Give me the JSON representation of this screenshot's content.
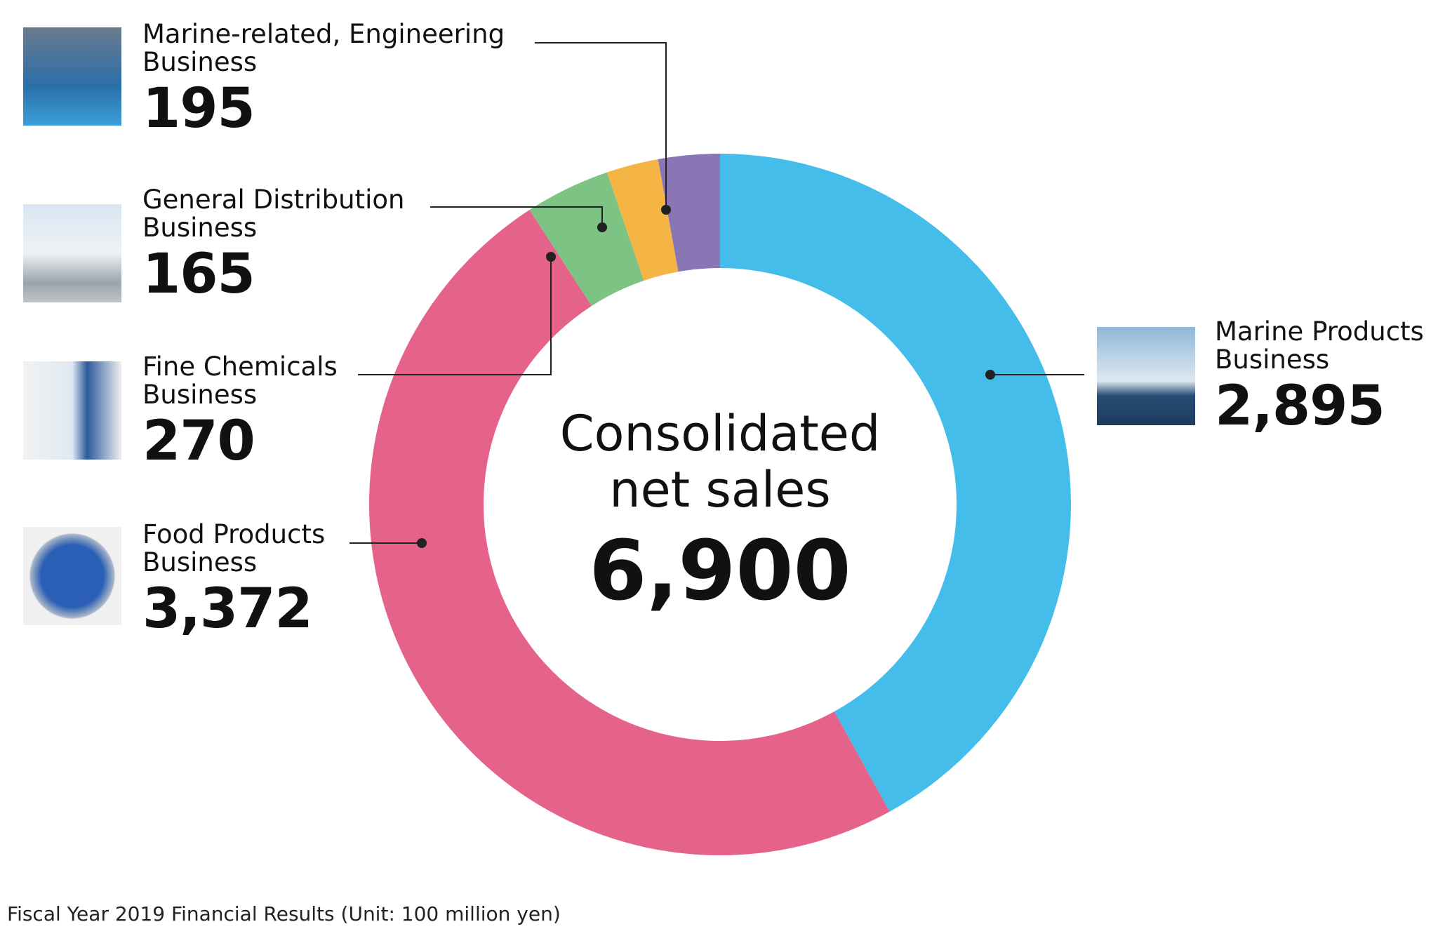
{
  "chart_data": {
    "type": "donut",
    "categories": [
      "Marine Products\nBusiness",
      "Food Products\nBusiness",
      "Fine Chemicals\nBusiness",
      "General Distribution\nBusiness",
      "Marine-related, Engineering\nBusiness"
    ],
    "values": [
      2895,
      3372,
      270,
      165,
      195
    ],
    "value_labels": [
      "2,895",
      "3,372",
      "270",
      "165",
      "195"
    ],
    "colors": [
      "#45bdea",
      "#e5638a",
      "#7dc383",
      "#f5b545",
      "#8b76b5"
    ],
    "center_label": "Consolidated\nnet sales",
    "total": 6900,
    "total_label": "6,900",
    "footnote": "Fiscal Year 2019 Financial Results (Unit: 100 million yen)"
  }
}
